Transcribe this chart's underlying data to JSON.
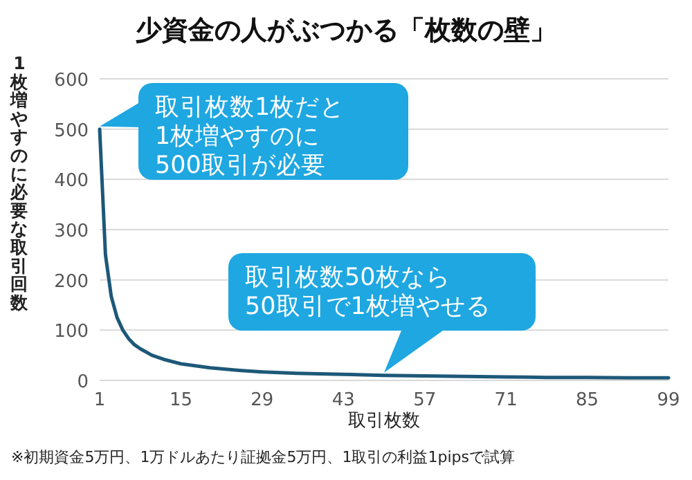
{
  "chart_data": {
    "type": "line",
    "title": "少資金の人がぶつかる「枚数の壁」",
    "xlabel": "取引枚数",
    "ylabel": "1枚増やすのに必要な取引回数",
    "x": [
      1,
      2,
      3,
      4,
      5,
      6,
      7,
      8,
      10,
      12,
      15,
      20,
      25,
      29,
      35,
      43,
      50,
      57,
      64,
      71,
      78,
      85,
      92,
      99
    ],
    "series": [
      {
        "color": "#1d5878",
        "values": [
          500,
          250,
          167,
          125,
          100,
          83,
          71,
          63,
          50,
          42,
          33,
          25,
          20,
          17,
          14,
          12,
          10,
          9,
          8,
          7,
          6,
          6,
          5,
          5
        ]
      }
    ],
    "xlim": [
      1,
      99
    ],
    "xticks": [
      1,
      15,
      29,
      43,
      57,
      71,
      85,
      99
    ],
    "ylim": [
      0,
      600
    ],
    "yticks": [
      0,
      100,
      200,
      300,
      400,
      500,
      600
    ],
    "grid": "y",
    "marker": "none",
    "line_style": "solid",
    "annotations": [
      {
        "text": "取引枚数1枚だと\n1枚増やすのに\n500取引が必要",
        "x": 1,
        "y": 500
      },
      {
        "text": "取引枚数50枚なら\n50取引で1枚増やせる",
        "x": 50,
        "y": 10
      },
      "※初期資金5万円、1万ドルあたり証拠金5万円、1取引の利益1pipsで試算"
    ]
  }
}
